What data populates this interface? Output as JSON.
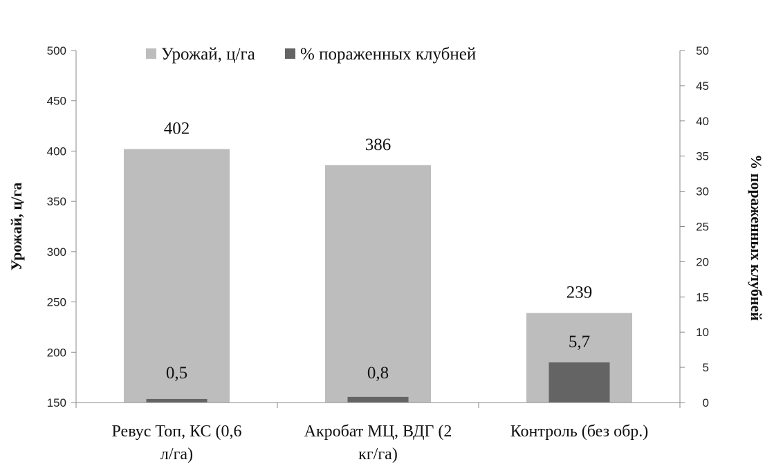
{
  "chart_data": {
    "type": "bar",
    "categories": [
      [
        "Ревус Топ, КС (0,6",
        "л/га)"
      ],
      [
        "Акробат МЦ, ВДГ (2",
        "кг/га)"
      ],
      [
        "Контроль (без обр.)"
      ]
    ],
    "series": [
      {
        "name": "Урожай, ц/га",
        "axis": "left",
        "color": "#bdbdbd",
        "values": [
          402,
          386,
          239
        ],
        "labels": [
          "402",
          "386",
          "239"
        ]
      },
      {
        "name": "% пораженных клубней",
        "axis": "right",
        "color": "#646464",
        "values": [
          0.5,
          0.8,
          5.7
        ],
        "labels": [
          "0,5",
          "0,8",
          "5,7"
        ]
      }
    ],
    "ylabel": "Урожай, ц/га",
    "y2label": "% пораженных клубней",
    "ylim": [
      150,
      500
    ],
    "y2lim": [
      0,
      50
    ],
    "yticks": [
      150,
      200,
      250,
      300,
      350,
      400,
      450,
      500
    ],
    "y2ticks": [
      0,
      5,
      10,
      15,
      20,
      25,
      30,
      35,
      40,
      45,
      50
    ],
    "grid": false,
    "legend": "top"
  }
}
